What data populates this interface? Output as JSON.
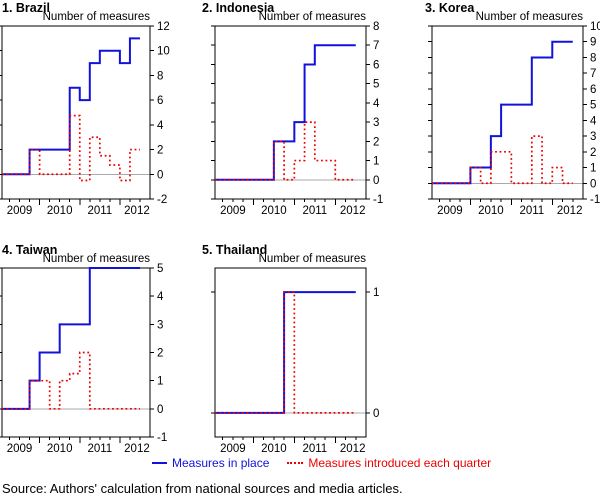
{
  "figure": {
    "x_axis": {
      "year_labels": [
        "2009",
        "2010",
        "2011",
        "2012"
      ],
      "quarters": [
        "2009 Q1",
        "2009 Q2",
        "2009 Q3",
        "2009 Q4",
        "2010 Q1",
        "2010 Q2",
        "2010 Q3",
        "2010 Q4",
        "2011 Q1",
        "2011 Q2",
        "2011 Q3",
        "2011 Q4",
        "2012 Q1",
        "2012 Q2"
      ]
    },
    "legend": [
      {
        "label": "Measures in place",
        "color": "#1212dd",
        "style": "solid"
      },
      {
        "label": "Measures introduced each quarter",
        "color": "#ee0000",
        "style": "dotted"
      }
    ],
    "footnote": "Source: Authors' calculation from national sources and media articles.",
    "colors": {
      "line_blue": "#1212dd",
      "line_red": "#ee0000",
      "zero_line": "#aaaaaa",
      "axis": "#000000"
    }
  },
  "chart_data": [
    {
      "type": "line",
      "title": "1. Brazil",
      "axis_title": "Number of measures",
      "ylim": [
        -2,
        12
      ],
      "yticks": [
        -2,
        0,
        2,
        4,
        6,
        8,
        10,
        12
      ],
      "series": [
        {
          "name": "Measures in place",
          "color": "#1212dd",
          "line_style": "solid",
          "values": [
            0,
            0,
            0,
            2,
            2,
            2,
            2,
            7,
            6,
            9,
            10,
            10,
            9,
            11
          ]
        },
        {
          "name": "Measures introduced each quarter",
          "color": "#ee0000",
          "line_style": "dotted",
          "values": [
            0,
            0,
            0,
            2,
            0,
            0,
            0,
            4.75,
            -0.5,
            3,
            1.5,
            0.75,
            -0.5,
            2
          ]
        }
      ]
    },
    {
      "type": "line",
      "title": "2. Indonesia",
      "axis_title": "Number of measures",
      "ylim": [
        -1,
        8
      ],
      "yticks": [
        -1,
        0,
        1,
        2,
        3,
        4,
        5,
        6,
        7,
        8
      ],
      "series": [
        {
          "name": "Measures in place",
          "color": "#1212dd",
          "line_style": "solid",
          "values": [
            0,
            0,
            0,
            0,
            0,
            0,
            2,
            2,
            3,
            6,
            7,
            7,
            7,
            7
          ]
        },
        {
          "name": "Measures introduced each quarter",
          "color": "#ee0000",
          "line_style": "dotted",
          "values": [
            0,
            0,
            0,
            0,
            0,
            0,
            2,
            0,
            1,
            3,
            1,
            1,
            0,
            0
          ]
        }
      ]
    },
    {
      "type": "line",
      "title": "3. Korea",
      "axis_title": "Number of measures",
      "ylim": [
        -1,
        10
      ],
      "yticks": [
        -1,
        0,
        1,
        2,
        3,
        4,
        5,
        6,
        7,
        8,
        9,
        10
      ],
      "series": [
        {
          "name": "Measures in place",
          "color": "#1212dd",
          "line_style": "solid",
          "values": [
            0,
            0,
            0,
            0,
            1,
            1,
            3,
            5,
            5,
            5,
            8,
            8,
            9,
            9
          ]
        },
        {
          "name": "Measures introduced each quarter",
          "color": "#ee0000",
          "line_style": "dotted",
          "values": [
            0,
            0,
            0,
            0,
            1,
            0,
            2,
            2,
            0,
            0,
            3,
            0,
            1,
            0
          ]
        }
      ]
    },
    {
      "type": "line",
      "title": "4. Taiwan",
      "axis_title": "Number of measures",
      "ylim": [
        -1,
        5
      ],
      "yticks": [
        -1,
        0,
        1,
        2,
        3,
        4,
        5
      ],
      "series": [
        {
          "name": "Measures in place",
          "color": "#1212dd",
          "line_style": "solid",
          "values": [
            0,
            0,
            0,
            1,
            2,
            2,
            3,
            3,
            3,
            5,
            5,
            5,
            5,
            5
          ]
        },
        {
          "name": "Measures introduced each quarter",
          "color": "#ee0000",
          "line_style": "dotted",
          "values": [
            0,
            0,
            0,
            1,
            1,
            0,
            1,
            1.25,
            2,
            0,
            0,
            0,
            0,
            0
          ]
        }
      ]
    },
    {
      "type": "line",
      "title": "5. Thailand",
      "axis_title": "Number of measures",
      "ylim": [
        -0.2,
        1.2
      ],
      "yticks": [
        0,
        1
      ],
      "series": [
        {
          "name": "Measures in place",
          "color": "#1212dd",
          "line_style": "solid",
          "values": [
            0,
            0,
            0,
            0,
            0,
            0,
            0,
            1,
            1,
            1,
            1,
            1,
            1,
            1
          ]
        },
        {
          "name": "Measures introduced each quarter",
          "color": "#ee0000",
          "line_style": "dotted",
          "values": [
            0,
            0,
            0,
            0,
            0,
            0,
            0,
            1,
            0,
            0,
            0,
            0,
            0,
            0
          ]
        }
      ]
    }
  ]
}
